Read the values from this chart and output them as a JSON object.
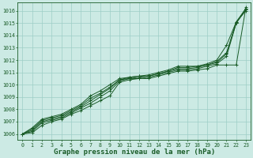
{
  "background_color": "#cceae4",
  "grid_color": "#9ecec6",
  "line_color": "#1a5c28",
  "title": "Graphe pression niveau de la mer (hPa)",
  "title_fontsize": 6.5,
  "xlim": [
    -0.5,
    23.5
  ],
  "ylim": [
    1005.5,
    1016.7
  ],
  "yticks": [
    1006,
    1007,
    1008,
    1009,
    1010,
    1011,
    1012,
    1013,
    1014,
    1015,
    1016
  ],
  "xticks": [
    0,
    1,
    2,
    3,
    4,
    5,
    6,
    7,
    8,
    9,
    10,
    11,
    12,
    13,
    14,
    15,
    16,
    17,
    18,
    19,
    20,
    21,
    22,
    23
  ],
  "series": [
    [
      1006.0,
      1006.1,
      1006.7,
      1007.0,
      1007.2,
      1007.6,
      1007.9,
      1008.3,
      1008.7,
      1009.1,
      1010.2,
      1010.4,
      1010.5,
      1010.5,
      1010.7,
      1010.9,
      1011.1,
      1011.1,
      1011.2,
      1011.3,
      1011.6,
      1011.6,
      1011.6,
      1016.3
    ],
    [
      1006.0,
      1006.2,
      1006.9,
      1007.1,
      1007.3,
      1007.7,
      1008.1,
      1008.5,
      1009.0,
      1009.5,
      1010.3,
      1010.5,
      1010.5,
      1010.6,
      1010.8,
      1011.0,
      1011.2,
      1011.2,
      1011.3,
      1011.5,
      1011.7,
      1012.3,
      1015.0,
      1016.2
    ],
    [
      1006.0,
      1006.3,
      1007.0,
      1007.2,
      1007.4,
      1007.8,
      1008.2,
      1008.7,
      1009.2,
      1009.7,
      1010.4,
      1010.5,
      1010.6,
      1010.7,
      1010.9,
      1011.1,
      1011.3,
      1011.3,
      1011.4,
      1011.6,
      1011.8,
      1012.5,
      1015.1,
      1016.2
    ],
    [
      1006.0,
      1006.4,
      1007.1,
      1007.3,
      1007.5,
      1007.9,
      1008.3,
      1008.9,
      1009.3,
      1009.8,
      1010.4,
      1010.6,
      1010.7,
      1010.7,
      1010.9,
      1011.1,
      1011.4,
      1011.4,
      1011.5,
      1011.6,
      1011.9,
      1012.6,
      1015.0,
      1016.1
    ],
    [
      1006.0,
      1006.5,
      1007.2,
      1007.4,
      1007.6,
      1008.0,
      1008.4,
      1009.1,
      1009.5,
      1010.0,
      1010.5,
      1010.6,
      1010.7,
      1010.8,
      1011.0,
      1011.2,
      1011.5,
      1011.5,
      1011.5,
      1011.7,
      1012.0,
      1013.2,
      1015.1,
      1016.0
    ]
  ]
}
